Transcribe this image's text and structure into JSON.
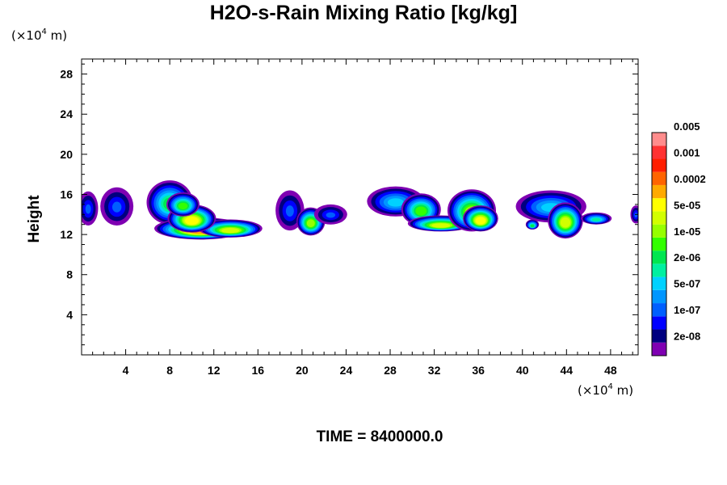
{
  "title": "H2O-s-Rain Mixing Ratio [kg/kg]",
  "time_label": "TIME = 8400000.0",
  "y_unit": {
    "prefix": "(×10",
    "exp": "4",
    "suffix": " m)"
  },
  "x_unit": {
    "prefix": "(×10",
    "exp": "4",
    "suffix": " m)"
  },
  "chart_data": {
    "type": "heatmap",
    "title": "H2O-s-Rain Mixing Ratio [kg/kg]",
    "xlabel": "",
    "ylabel": "Height",
    "xlim": [
      0,
      50.5
    ],
    "ylim": [
      0,
      29.5
    ],
    "x_ticks": [
      4,
      8,
      12,
      16,
      20,
      24,
      28,
      32,
      36,
      40,
      44,
      48
    ],
    "y_ticks": [
      4,
      8,
      12,
      16,
      20,
      24,
      28
    ],
    "colorbar": {
      "colors": [
        "#7f00b2",
        "#00007f",
        "#0000ff",
        "#005fff",
        "#0096ff",
        "#00d2ff",
        "#00f0a0",
        "#00e650",
        "#32ff00",
        "#96ff00",
        "#d2ff00",
        "#ffff00",
        "#ffaa00",
        "#ff6400",
        "#ff1e00",
        "#ff3232",
        "#ff8c8c"
      ],
      "labels": [
        "2e-08",
        "1e-07",
        "5e-07",
        "2e-06",
        "1e-05",
        "5e-05",
        "0.0002",
        "0.001",
        "0.005"
      ]
    },
    "cells": [
      {
        "x": 0.6,
        "y": 14.6,
        "rx": 0.9,
        "ry": 1.7,
        "level": 3
      },
      {
        "x": 3.2,
        "y": 14.8,
        "rx": 1.5,
        "ry": 1.9,
        "level": 3
      },
      {
        "x": 8.0,
        "y": 15.2,
        "rx": 2.1,
        "ry": 2.2,
        "level": 7
      },
      {
        "x": 10.8,
        "y": 12.6,
        "rx": 4.2,
        "ry": 1.1,
        "level": 12
      },
      {
        "x": 13.5,
        "y": 12.6,
        "rx": 2.9,
        "ry": 0.9,
        "level": 10
      },
      {
        "x": 10.0,
        "y": 13.6,
        "rx": 2.2,
        "ry": 1.4,
        "level": 11
      },
      {
        "x": 9.2,
        "y": 15.0,
        "rx": 1.5,
        "ry": 1.2,
        "level": 8
      },
      {
        "x": 18.9,
        "y": 14.4,
        "rx": 1.3,
        "ry": 2.0,
        "level": 3
      },
      {
        "x": 20.8,
        "y": 13.3,
        "rx": 1.3,
        "ry": 1.4,
        "level": 9
      },
      {
        "x": 22.6,
        "y": 14.0,
        "rx": 1.5,
        "ry": 1.0,
        "level": 3
      },
      {
        "x": 28.5,
        "y": 15.3,
        "rx": 2.6,
        "ry": 1.5,
        "level": 5
      },
      {
        "x": 30.8,
        "y": 14.5,
        "rx": 1.8,
        "ry": 1.6,
        "level": 8
      },
      {
        "x": 32.6,
        "y": 13.1,
        "rx": 3.0,
        "ry": 0.8,
        "level": 10
      },
      {
        "x": 35.4,
        "y": 14.4,
        "rx": 2.2,
        "ry": 2.1,
        "level": 9
      },
      {
        "x": 36.2,
        "y": 13.6,
        "rx": 1.6,
        "ry": 1.3,
        "level": 11
      },
      {
        "x": 42.6,
        "y": 14.8,
        "rx": 3.2,
        "ry": 1.6,
        "level": 5
      },
      {
        "x": 43.9,
        "y": 13.4,
        "rx": 1.6,
        "ry": 1.8,
        "level": 10
      },
      {
        "x": 46.7,
        "y": 13.6,
        "rx": 1.4,
        "ry": 0.6,
        "level": 6
      },
      {
        "x": 40.9,
        "y": 13.0,
        "rx": 0.6,
        "ry": 0.5,
        "level": 7
      },
      {
        "x": 50.3,
        "y": 14.0,
        "rx": 0.5,
        "ry": 0.9,
        "level": 3
      }
    ]
  }
}
